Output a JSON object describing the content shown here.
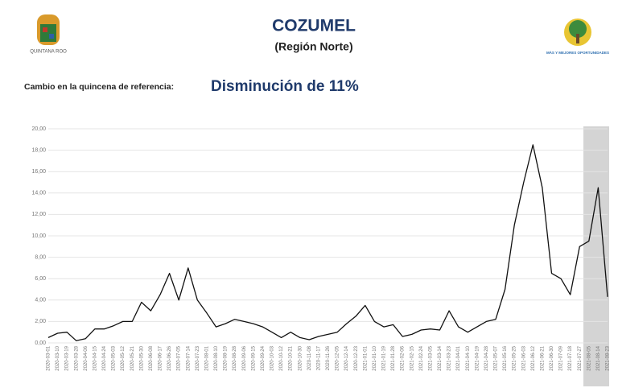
{
  "logos": {
    "left": "QUINTANA ROO",
    "right": "MÁS Y MEJORES OPORTUNIDADES"
  },
  "chart_data": {
    "type": "line",
    "title": "COZUMEL",
    "subtitle": "(Región Norte)",
    "annotation_label": "Cambio en la quincena de referencia:",
    "annotation": "Disminución de 11%",
    "color": "#111111",
    "grid": true,
    "categories": [
      "2020-03-01",
      "2020-03-10",
      "2020-03-19",
      "2020-03-28",
      "2020-04-06",
      "2020-04-15",
      "2020-04-24",
      "2020-05-03",
      "2020-05-12",
      "2020-05-21",
      "2020-05-30",
      "2020-06-08",
      "2020-06-17",
      "2020-06-26",
      "2020-07-05",
      "2020-07-14",
      "2020-07-23",
      "2020-08-01",
      "2020-08-10",
      "2020-08-19",
      "2020-08-28",
      "2020-09-06",
      "2020-09-15",
      "2020-09-24",
      "2020-10-03",
      "2020-10-12",
      "2020-10-21",
      "2020-10-30",
      "2020-11-08",
      "2020-11-17",
      "2020-11-26",
      "2020-12-05",
      "2020-12-14",
      "2020-12-23",
      "2021-01-01",
      "2021-01-10",
      "2021-01-19",
      "2021-01-28",
      "2021-02-06",
      "2021-02-15",
      "2021-02-24",
      "2021-03-05",
      "2021-03-14",
      "2021-03-23",
      "2021-04-01",
      "2021-04-10",
      "2021-04-19",
      "2021-04-28",
      "2021-05-07",
      "2021-05-16",
      "2021-05-25",
      "2021-06-03",
      "2021-06-12",
      "2021-06-21",
      "2021-06-30",
      "2021-07-09",
      "2021-07-18",
      "2021-07-27",
      "2021-08-05",
      "2021-08-14",
      "2021-08-23"
    ],
    "values": [
      0.5,
      0.9,
      1.0,
      0.2,
      0.4,
      1.3,
      1.3,
      1.6,
      2.0,
      2.0,
      3.8,
      3.0,
      4.5,
      6.5,
      4.0,
      7.0,
      4.0,
      2.8,
      1.5,
      1.8,
      2.2,
      2.0,
      1.8,
      1.5,
      1.0,
      0.5,
      1.0,
      0.5,
      0.3,
      0.6,
      0.8,
      1.0,
      1.8,
      2.5,
      3.5,
      2.0,
      1.5,
      1.7,
      0.6,
      0.8,
      1.2,
      1.3,
      1.2,
      3.0,
      1.5,
      1.0,
      1.5,
      2.0,
      2.2,
      5.0,
      11.0,
      15.0,
      18.5,
      14.5,
      6.5,
      6.0,
      4.5,
      9.0,
      9.5,
      14.5,
      4.3
    ],
    "ylim": [
      0,
      20
    ],
    "yticks": [
      {
        "value": 0,
        "label": "0,00"
      },
      {
        "value": 2,
        "label": "2,00"
      },
      {
        "value": 4,
        "label": "4,00"
      },
      {
        "value": 6,
        "label": "6,00"
      },
      {
        "value": 8,
        "label": "8,00"
      },
      {
        "value": 10,
        "label": "10,00"
      },
      {
        "value": 12,
        "label": "12,00"
      },
      {
        "value": 14,
        "label": "14,00"
      },
      {
        "value": 16,
        "label": "16,00"
      },
      {
        "value": 18,
        "label": "18,00"
      },
      {
        "value": 20,
        "label": "20,00"
      }
    ]
  }
}
